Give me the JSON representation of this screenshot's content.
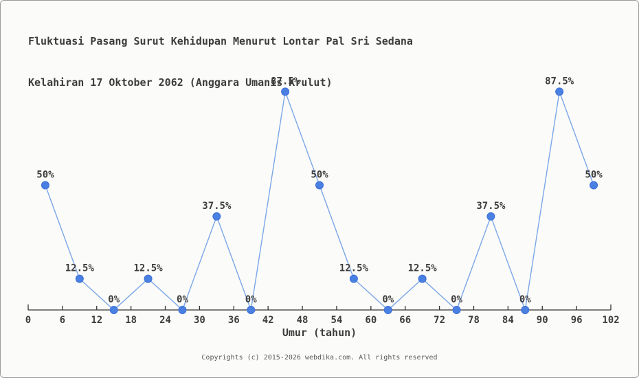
{
  "page": {
    "background_color": "#fbfbf9",
    "border_color": "#9a9a9a"
  },
  "chart_data": {
    "type": "line",
    "title": "Fluktuasi Pasang Surut Kehidupan Menurut Lontar Pal Sri Sedana",
    "subtitle": "Kelahiran 17 Oktober 2062 (Anggara Umanis Krulut)",
    "xlabel": "Umur (tahun)",
    "ylabel": "",
    "x": [
      3,
      9,
      15,
      21,
      27,
      33,
      39,
      45,
      51,
      57,
      63,
      69,
      75,
      81,
      87,
      93,
      99
    ],
    "values": [
      50,
      12.5,
      0,
      12.5,
      0,
      37.5,
      0,
      87.5,
      50,
      12.5,
      0,
      12.5,
      0,
      37.5,
      0,
      87.5,
      50
    ],
    "point_labels": [
      "50%",
      "12.5%",
      "0%",
      "12.5%",
      "0%",
      "37.5%",
      "0%",
      "87.5%",
      "50%",
      "12.5%",
      "0%",
      "12.5%",
      "0%",
      "37.5%",
      "0%",
      "87.5%",
      "50%"
    ],
    "x_ticks": [
      0,
      6,
      12,
      18,
      24,
      30,
      36,
      42,
      48,
      54,
      60,
      66,
      72,
      78,
      84,
      90,
      96,
      102
    ],
    "xlim": [
      0,
      102
    ],
    "ylim": [
      0,
      100
    ],
    "grid": false,
    "legend": "none",
    "line_color": "#7aa6e8",
    "marker_color": "#4a80e2",
    "marker_edge_color": "#3b6fd6",
    "axis_color": "#333333",
    "text_color": "#3d3d3d"
  },
  "footer": {
    "copyright": "Copyrights (c) 2015-2026 webdika.com. All rights reserved"
  }
}
